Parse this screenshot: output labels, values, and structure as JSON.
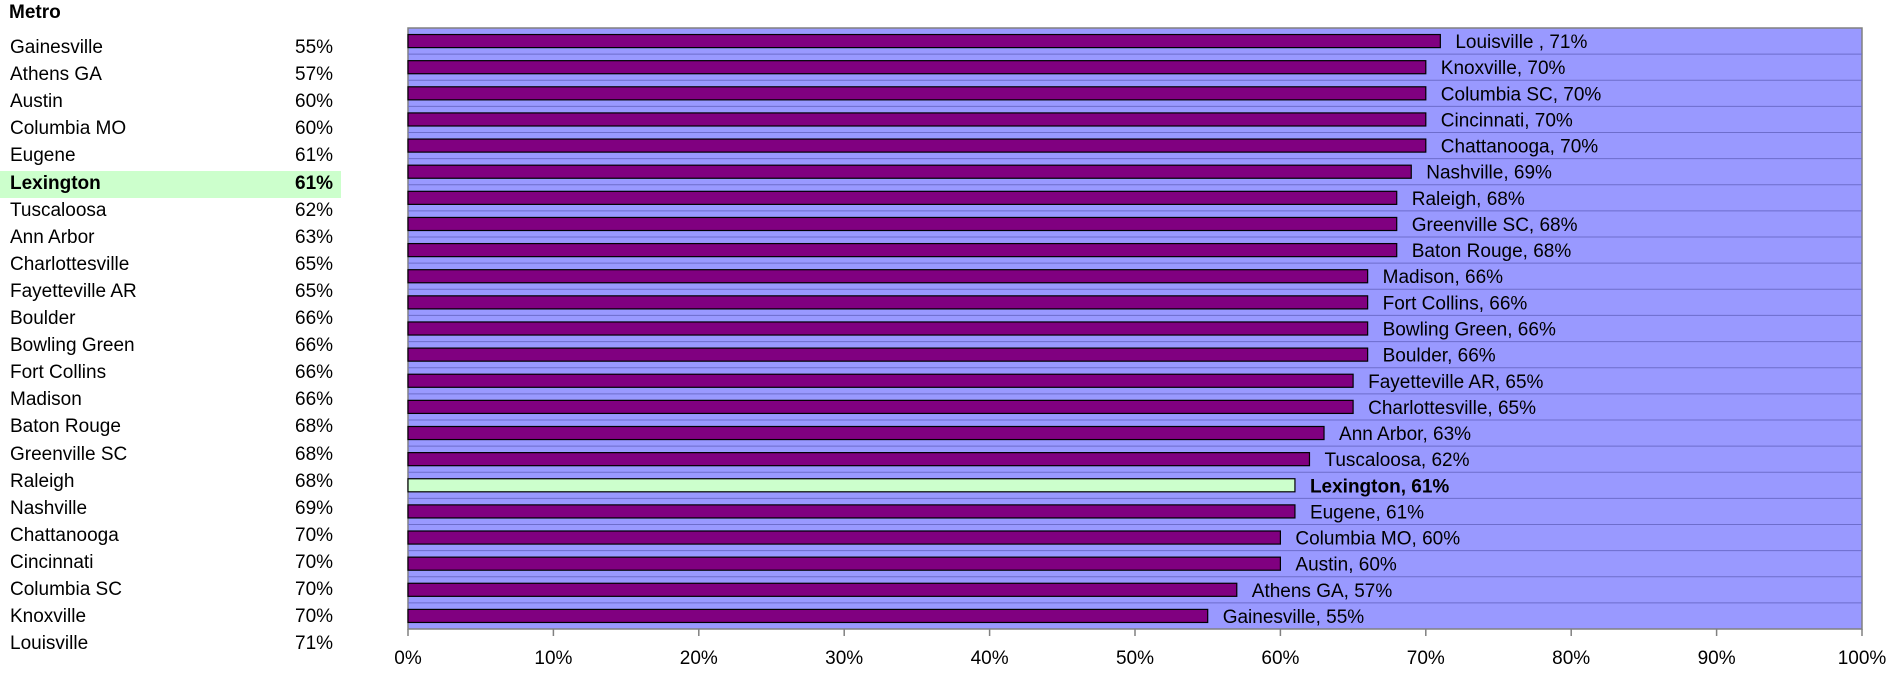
{
  "table": {
    "header": "Metro",
    "rows": [
      {
        "name": "Gainesville",
        "pct": "55%"
      },
      {
        "name": "Athens GA",
        "pct": "57%"
      },
      {
        "name": "Austin",
        "pct": "60%"
      },
      {
        "name": "Columbia MO",
        "pct": "60%"
      },
      {
        "name": "Eugene",
        "pct": "61%"
      },
      {
        "name": "Lexington",
        "pct": "61%",
        "highlight": true
      },
      {
        "name": "Tuscaloosa",
        "pct": "62%"
      },
      {
        "name": "Ann Arbor",
        "pct": "63%"
      },
      {
        "name": "Charlottesville",
        "pct": "65%"
      },
      {
        "name": "Fayetteville AR",
        "pct": "65%"
      },
      {
        "name": "Boulder",
        "pct": "66%"
      },
      {
        "name": "Bowling Green",
        "pct": "66%"
      },
      {
        "name": "Fort Collins",
        "pct": "66%"
      },
      {
        "name": "Madison",
        "pct": "66%"
      },
      {
        "name": "Baton Rouge",
        "pct": "68%"
      },
      {
        "name": "Greenville SC",
        "pct": "68%"
      },
      {
        "name": "Raleigh",
        "pct": "68%"
      },
      {
        "name": "Nashville",
        "pct": "69%"
      },
      {
        "name": "Chattanooga",
        "pct": "70%"
      },
      {
        "name": "Cincinnati",
        "pct": "70%"
      },
      {
        "name": "Columbia SC",
        "pct": "70%"
      },
      {
        "name": "Knoxville",
        "pct": "70%"
      },
      {
        "name": "Louisville",
        "pct": "71%"
      }
    ]
  },
  "chart_data": {
    "type": "bar",
    "orientation": "horizontal",
    "categories": [
      "Louisville",
      "Knoxville",
      "Columbia SC",
      "Cincinnati",
      "Chattanooga",
      "Nashville",
      "Raleigh",
      "Greenville SC",
      "Baton Rouge",
      "Madison",
      "Fort Collins",
      "Bowling Green",
      "Boulder",
      "Fayetteville AR",
      "Charlottesville",
      "Ann Arbor",
      "Tuscaloosa",
      "Lexington",
      "Eugene",
      "Columbia MO",
      "Austin",
      "Athens GA",
      "Gainesville"
    ],
    "values": [
      71,
      70,
      70,
      70,
      70,
      69,
      68,
      68,
      68,
      66,
      66,
      66,
      66,
      65,
      65,
      63,
      62,
      61,
      61,
      60,
      60,
      57,
      55
    ],
    "data_labels": [
      "Louisville , 71%",
      "Knoxville, 70%",
      "Columbia SC, 70%",
      "Cincinnati, 70%",
      "Chattanooga, 70%",
      "Nashville, 69%",
      "Raleigh, 68%",
      "Greenville SC, 68%",
      "Baton Rouge, 68%",
      "Madison, 66%",
      "Fort Collins, 66%",
      "Bowling Green, 66%",
      "Boulder, 66%",
      "Fayetteville AR, 65%",
      "Charlottesville, 65%",
      "Ann Arbor, 63%",
      "Tuscaloosa, 62%",
      "Lexington, 61%",
      "Eugene, 61%",
      "Columbia MO, 60%",
      "Austin, 60%",
      "Athens GA, 57%",
      "Gainesville, 55%"
    ],
    "highlight": "Lexington",
    "xlim": [
      0,
      100
    ],
    "x_ticks": [
      "0%",
      "10%",
      "20%",
      "30%",
      "40%",
      "50%",
      "60%",
      "70%",
      "80%",
      "90%",
      "100%"
    ],
    "grid": true,
    "colors": {
      "plot_bg": "#9999ff",
      "bar": "#800080",
      "bar_highlight": "#ccffcc",
      "grid": "#6d6dcc"
    }
  }
}
